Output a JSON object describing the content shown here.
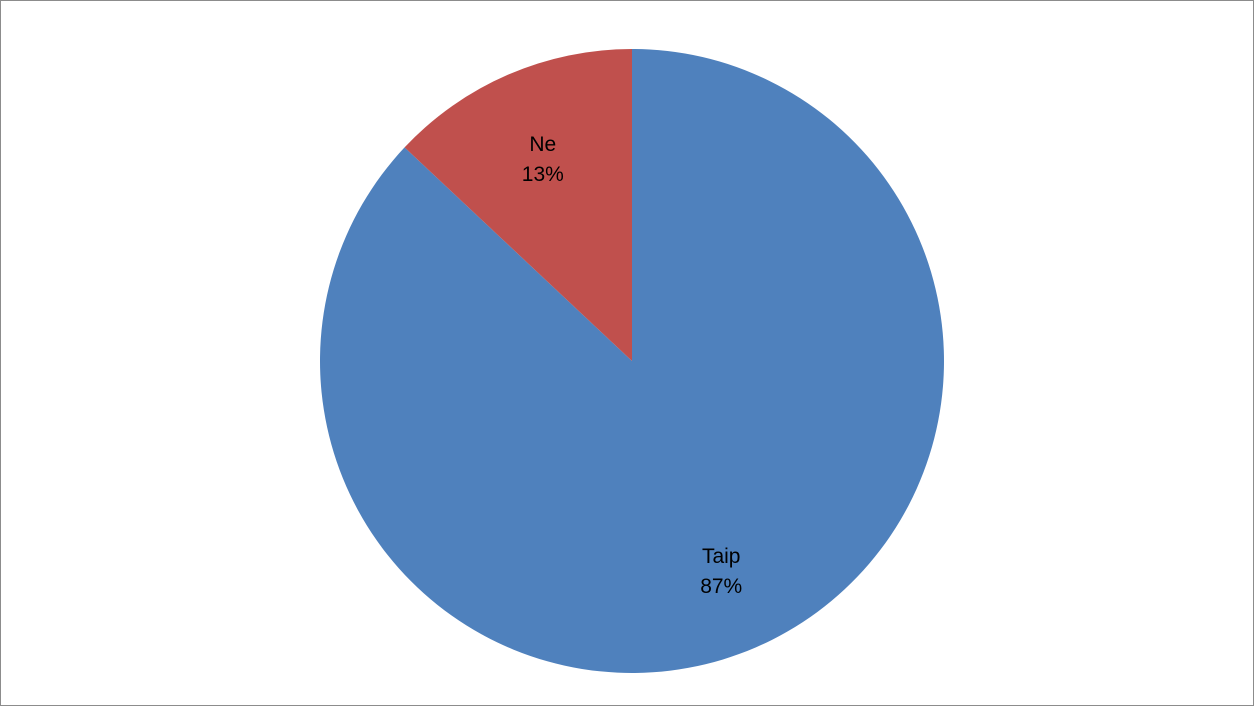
{
  "chart_data": {
    "type": "pie",
    "categories": [
      "Taip",
      "Ne"
    ],
    "values": [
      87,
      13
    ],
    "value_labels": [
      "87%",
      "13%"
    ],
    "colors": [
      "#4f81bd",
      "#c0504d"
    ],
    "start_angle_deg": 0,
    "direction": "clockwise",
    "legend": "none"
  }
}
